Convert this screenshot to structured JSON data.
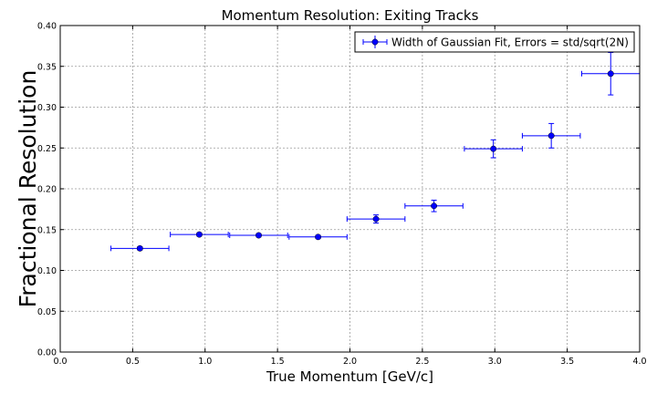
{
  "chart_data": {
    "type": "scatter",
    "title": "Momentum Resolution: Exiting Tracks",
    "xlabel": "True Momentum [GeV/c]",
    "ylabel": "Fractional Resolution",
    "xlim": [
      0.0,
      4.0
    ],
    "ylim": [
      0.0,
      0.4
    ],
    "xticks": [
      "0.0",
      "0.5",
      "1.0",
      "1.5",
      "2.0",
      "2.5",
      "3.0",
      "3.5",
      "4.0"
    ],
    "yticks": [
      "0.00",
      "0.05",
      "0.10",
      "0.15",
      "0.20",
      "0.25",
      "0.30",
      "0.35",
      "0.40"
    ],
    "grid": true,
    "legend_position": "top-right",
    "series": [
      {
        "name": "Width of Gaussian Fit, Errors = std/sqrt(2N)",
        "color": "#0000ff",
        "x": [
          0.55,
          0.96,
          1.37,
          1.78,
          2.18,
          2.58,
          2.99,
          3.39,
          3.8
        ],
        "y": [
          0.127,
          0.144,
          0.143,
          0.141,
          0.163,
          0.179,
          0.249,
          0.265,
          0.341
        ],
        "xerr": [
          0.2,
          0.2,
          0.2,
          0.2,
          0.2,
          0.2,
          0.2,
          0.2,
          0.2
        ],
        "yerr": [
          0.002,
          0.002,
          0.002,
          0.002,
          0.005,
          0.007,
          0.011,
          0.015,
          0.026
        ]
      }
    ]
  }
}
